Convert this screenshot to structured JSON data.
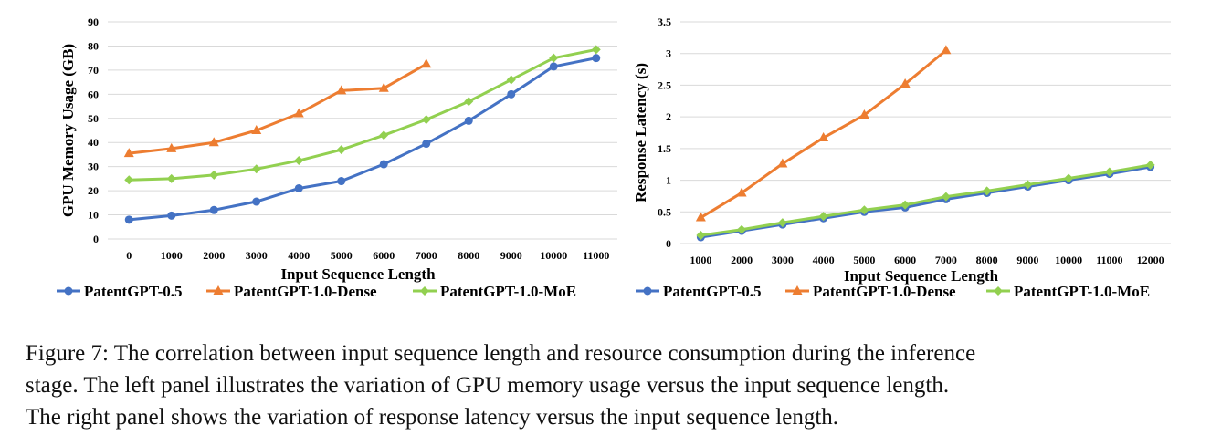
{
  "colors": {
    "series_1": "#4472C4",
    "series_2": "#ED7D31",
    "series_3": "#92D050",
    "grid": "#D9D9D9"
  },
  "chart_data": [
    {
      "type": "line",
      "title": "",
      "xlabel": "Input Sequence Length",
      "ylabel": "GPU Memory Usage (GB)",
      "categories": [
        "0",
        "1000",
        "2000",
        "3000",
        "4000",
        "5000",
        "6000",
        "7000",
        "8000",
        "9000",
        "10000",
        "11000"
      ],
      "ylim": [
        0,
        90
      ],
      "yticks": [
        "0",
        "10",
        "20",
        "30",
        "40",
        "50",
        "60",
        "70",
        "80",
        "90"
      ],
      "grid": true,
      "legend": "bottom",
      "series": [
        {
          "name": "PatentGPT-0.5",
          "marker": "circle",
          "values": [
            8,
            9.7,
            12,
            15.5,
            21,
            24,
            31,
            39.5,
            49,
            60,
            71.5,
            75
          ]
        },
        {
          "name": "PatentGPT-1.0-Dense",
          "marker": "triangle",
          "values": [
            35.5,
            37.5,
            40,
            45,
            52,
            61.5,
            62.5,
            72.5,
            null,
            null,
            null,
            null
          ]
        },
        {
          "name": "PatentGPT-1.0-MoE",
          "marker": "diamond",
          "values": [
            24.5,
            25,
            26.5,
            29,
            32.5,
            37,
            43,
            49.5,
            57,
            66,
            75,
            78.5
          ]
        }
      ]
    },
    {
      "type": "line",
      "title": "",
      "xlabel": "Input Sequence Length",
      "ylabel": "Response Latency (s)",
      "categories": [
        "1000",
        "2000",
        "3000",
        "4000",
        "5000",
        "6000",
        "7000",
        "8000",
        "9000",
        "10000",
        "11000",
        "12000"
      ],
      "ylim": [
        0,
        3.5
      ],
      "yticks": [
        "0",
        "0.5",
        "1",
        "1.5",
        "2",
        "2.5",
        "3",
        "3.5"
      ],
      "grid": true,
      "legend": "bottom",
      "series": [
        {
          "name": "PatentGPT-0.5",
          "marker": "circle",
          "values": [
            0.1,
            0.2,
            0.3,
            0.4,
            0.5,
            0.57,
            0.7,
            0.8,
            0.9,
            1.0,
            1.1,
            1.21
          ]
        },
        {
          "name": "PatentGPT-1.0-Dense",
          "marker": "triangle",
          "values": [
            0.41,
            0.8,
            1.26,
            1.67,
            2.03,
            2.52,
            3.05,
            null,
            null,
            null,
            null,
            null
          ]
        },
        {
          "name": "PatentGPT-1.0-MoE",
          "marker": "diamond",
          "values": [
            0.13,
            0.22,
            0.33,
            0.43,
            0.53,
            0.61,
            0.74,
            0.83,
            0.93,
            1.03,
            1.13,
            1.24
          ]
        }
      ]
    }
  ],
  "caption": {
    "lines": [
      "Figure 7: The correlation between input sequence length and resource consumption during the inference",
      "stage. The left panel illustrates the variation of GPU memory usage versus the input sequence length.",
      "The right panel shows the variation of response latency versus the input sequence length."
    ]
  }
}
